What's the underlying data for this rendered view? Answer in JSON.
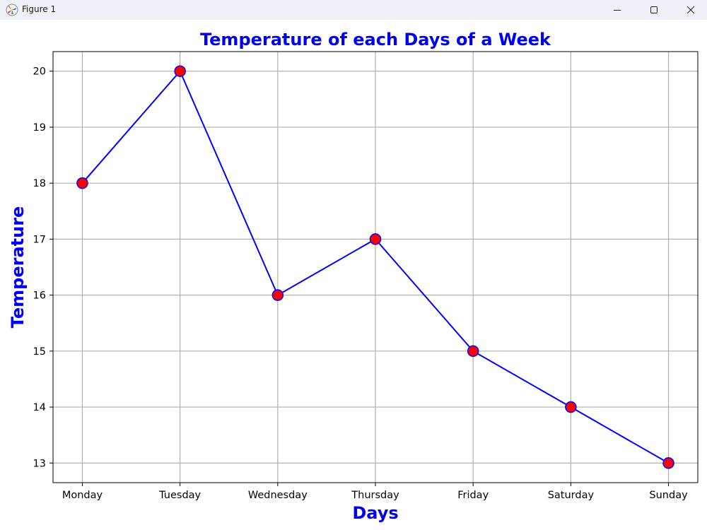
{
  "window": {
    "title": "Figure 1",
    "icons": {
      "app": "matplotlib-logo-icon",
      "minimize": "minimize-icon",
      "maximize": "maximize-icon",
      "close": "close-icon"
    }
  },
  "chart_data": {
    "type": "line",
    "title": "Temperature of each Days of a Week",
    "xlabel": "Days",
    "ylabel": "Temperature",
    "categories": [
      "Monday",
      "Tuesday",
      "Wednesday",
      "Thursday",
      "Friday",
      "Saturday",
      "Sunday"
    ],
    "series": [
      {
        "values": [
          18,
          20,
          16,
          17,
          15,
          14,
          13
        ],
        "line_color": "#0000ff",
        "marker": "circle",
        "marker_face_color": "#ff0000",
        "marker_edge_color": "#0000ff"
      }
    ],
    "ylim": [
      12.65,
      20.35
    ],
    "yticks": [
      13,
      14,
      15,
      16,
      17,
      18,
      19,
      20
    ],
    "grid": true,
    "title_color": "#0000ee",
    "label_color": "#0000ee"
  }
}
